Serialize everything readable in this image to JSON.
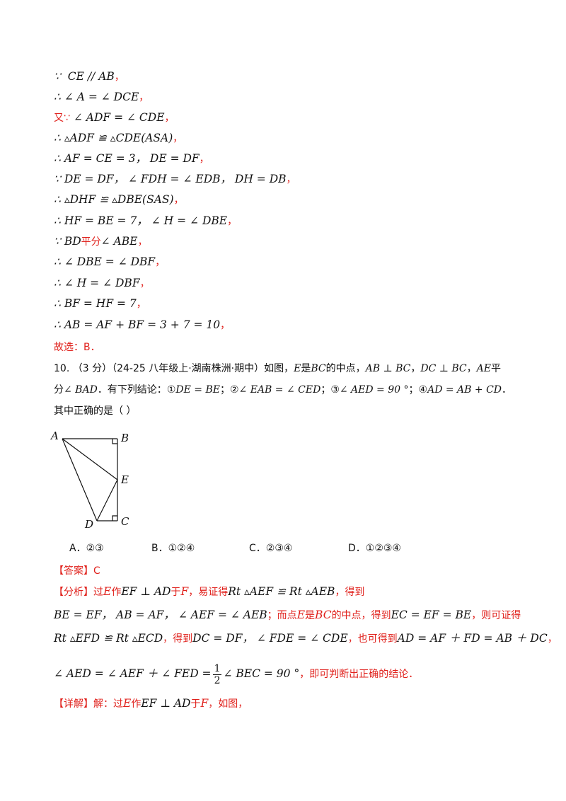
{
  "solution_steps": [
    {
      "sym": "∵",
      "expr": "CE  // AB",
      "end": "，"
    },
    {
      "sym": "∴",
      "expr": "∠ A = ∠ DCE",
      "end": "，"
    },
    {
      "sym": "又∵",
      "expr": "∠ ADF = ∠ CDE",
      "end": "，"
    },
    {
      "sym": "∴",
      "expr": "▵ADF ≌ ▵CDE(ASA)",
      "end": "，"
    },
    {
      "sym": "∴",
      "expr": "AF = CE = 3，  DE = DF",
      "end": "，"
    },
    {
      "sym": "∵",
      "expr": "DE = DF，  ∠ FDH = ∠ EDB，  DH = DB",
      "end": "，"
    },
    {
      "sym": "∴",
      "expr": "▵DHF ≌ ▵DBE(SAS)",
      "end": "，"
    },
    {
      "sym": "∴",
      "expr": "HF = BE = 7，  ∠ H = ∠ DBE",
      "end": "，"
    },
    {
      "sym": "∵",
      "expr_a": "BD",
      "mid": "平分",
      "expr": "∠ ABE",
      "end": "，"
    },
    {
      "sym": "∴",
      "expr": "∠ DBE = ∠ DBF",
      "end": "，"
    },
    {
      "sym": "∴",
      "expr": "∠ H = ∠ DBF",
      "end": "，"
    },
    {
      "sym": "∴",
      "expr": "BF = HF = 7",
      "end": "，"
    },
    {
      "sym": "∴",
      "expr": "AB = AF + BF = 3 + 7 = 10",
      "end": "，"
    }
  ],
  "prev_answer": "故选：B．",
  "question": {
    "number": "10.",
    "score": "（3 分）",
    "source": "（24-25 八年级上·湖南株洲·期中）",
    "stem_a": "如图，",
    "E": "E",
    "is": "是",
    "BC": "BC",
    "midpoint": "的中点，",
    "c1": "AB ⊥ BC",
    "sep1": "，",
    "c2": "DC ⊥ BC",
    "sep2": "，",
    "c3": "AE",
    "ping": "平",
    "line2_a": "分",
    "c4": "∠ BAD",
    "line2_b": "．有下列结论：",
    "n1": "①",
    "s1": "DE = BE",
    "semi1": "；",
    "n2": "②",
    "s2": "∠ EAB = ∠ CED",
    "semi2": "；",
    "n3": "③",
    "s3": "∠ AED = 90 °",
    "semi3": "；",
    "n4": "④",
    "s4": "AD = AB + CD",
    "dot": "．",
    "line3": "其中正确的是（    ）"
  },
  "figure_labels": {
    "A": "A",
    "B": "B",
    "E": "E",
    "C": "C",
    "D": "D"
  },
  "options": [
    {
      "label": "A．②③"
    },
    {
      "label": "B．①②④"
    },
    {
      "label": "C．②③④"
    },
    {
      "label": "D．①②③④"
    }
  ],
  "answer": {
    "tag": "【答案】",
    "value": "C"
  },
  "analysis": {
    "tag": "【分析】",
    "p1_a": "过",
    "p1_E": "E",
    "p1_b": "作",
    "p1_m1": "EF ⊥ AD",
    "p1_c": "于",
    "p1_F": "F",
    "p1_d": "，易证得",
    "p1_m2": "Rt ▵AEF ≌ Rt ▵AEB",
    "p1_e": "，得到",
    "p2_m1": "BE = EF，  AB = AF，  ∠ AEF = ∠ AEB",
    "p2_a": "；而点",
    "p2_E": "E",
    "p2_b": "是",
    "p2_BC": "BC",
    "p2_c": "的中点，得到",
    "p2_m2": "EC = EF = BE",
    "p2_d": "，则可证得",
    "p3_m1": "Rt ▵EFD ≌ Rt ▵ECD",
    "p3_a": "，得到",
    "p3_m2": "DC = DF，  ∠ FDE = ∠ CDE",
    "p3_b": "，也可得到",
    "p3_m3": "AD = AF ＋ FD = AB ＋ DC",
    "p3_c": "，",
    "p4_m1": "∠ AED = ∠ AEF ＋ ∠ FED =",
    "p4_num": "1",
    "p4_den": "2",
    "p4_m2": "∠ BEC = 90 °",
    "p4_a": "，即可判断出正确的结论．"
  },
  "detail": {
    "tag": "【详解】",
    "a": "解：过",
    "E": "E",
    "b": "作",
    "m": "EF ⊥ AD",
    "c": "于",
    "F": "F",
    "d": "，如图，"
  },
  "colors": {
    "accent": "#e0201b",
    "text": "#111111"
  }
}
